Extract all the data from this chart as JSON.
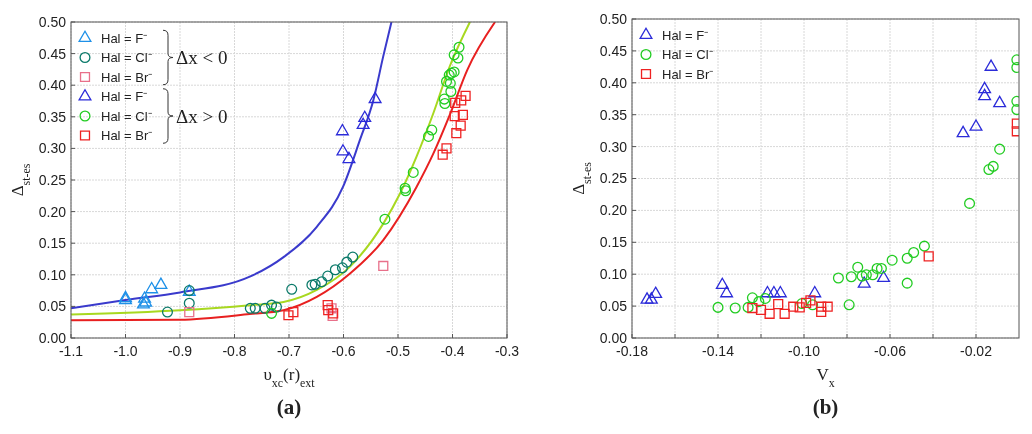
{
  "chart_data": [
    {
      "type": "scatter",
      "title": "(a)",
      "xlabel": "υ$_{xc}$(r)$_{ext}$",
      "ylabel": "Δ$_{st-es}$",
      "xlim": [
        -1.1,
        -0.3
      ],
      "xticks": [
        -1.1,
        {
          "value": -1.0,
          "label": "-1.0"
        },
        -0.9,
        -0.8,
        -0.7,
        -0.6,
        -0.5,
        -0.4,
        -0.3
      ],
      "ylim": [
        0,
        0.5
      ],
      "yticks": [
        {
          "value": 0,
          "label": "0.00"
        },
        0.05,
        {
          "value": 0.1,
          "label": "0.10"
        },
        0.15,
        {
          "value": 0.2,
          "label": "0.20"
        },
        0.25,
        {
          "value": 0.3,
          "label": "0.30"
        },
        0.35,
        {
          "value": 0.4,
          "label": "0.40"
        },
        0.45,
        {
          "value": 0.5,
          "label": "0.50"
        }
      ],
      "grid": true,
      "legend": "top left",
      "annotations": [
        "Δx < 0",
        "Δx > 0"
      ],
      "series": [
        {
          "name": "Hal = F⁻",
          "marker": "triangle",
          "color": "#1e90e8",
          "x": [
            -1.0,
            -1.0,
            -0.965,
            -0.967,
            -0.963,
            -0.952,
            -0.935,
            -0.883
          ],
          "values": [
            0.063,
            0.06,
            0.062,
            0.053,
            0.056,
            0.077,
            0.084,
            0.073
          ]
        },
        {
          "name": "Hal = Cl⁻",
          "marker": "circle",
          "color": "#0b7a6a",
          "x": [
            -0.923,
            -0.883,
            -0.883,
            -0.771,
            -0.762,
            -0.744,
            -0.732,
            -0.723,
            -0.695,
            -0.658,
            -0.652,
            -0.64,
            -0.629,
            -0.615,
            -0.602,
            -0.594,
            -0.583
          ],
          "values": [
            0.041,
            0.075,
            0.055,
            0.047,
            0.047,
            0.047,
            0.052,
            0.049,
            0.077,
            0.084,
            0.085,
            0.089,
            0.098,
            0.108,
            0.111,
            0.12,
            0.128
          ]
        },
        {
          "name": "Hal = Br⁻",
          "marker": "square",
          "color": "#e8708a",
          "x": [
            -0.883,
            -0.527,
            -0.622,
            -0.62
          ],
          "values": [
            0.041,
            0.114,
            0.047,
            0.035
          ]
        },
        {
          "name": "Hal = F⁻",
          "marker": "triangle",
          "color": "#2b2bd9",
          "x": [
            -0.602,
            -0.601,
            -0.59,
            -0.564,
            -0.561,
            -0.542
          ],
          "values": [
            0.327,
            0.295,
            0.283,
            0.337,
            0.348,
            0.378
          ]
        },
        {
          "name": "Hal = Cl⁻",
          "marker": "circle",
          "color": "#22cc22",
          "x": [
            -0.732,
            -0.524,
            -0.487,
            -0.486,
            -0.472,
            -0.444,
            -0.438,
            -0.415,
            -0.414,
            -0.411,
            -0.406,
            -0.402,
            -0.404,
            -0.397,
            -0.403,
            -0.397,
            -0.388,
            -0.39
          ],
          "values": [
            0.039,
            0.188,
            0.237,
            0.233,
            0.262,
            0.319,
            0.329,
            0.378,
            0.371,
            0.406,
            0.416,
            0.419,
            0.403,
            0.421,
            0.39,
            0.448,
            0.46,
            0.443
          ]
        },
        {
          "name": "Hal = Br⁻",
          "marker": "square",
          "color": "#ee2222",
          "x": [
            -0.701,
            -0.692,
            -0.628,
            -0.619,
            -0.629,
            -0.418,
            -0.411,
            -0.393,
            -0.385,
            -0.396,
            -0.381,
            -0.395,
            -0.384,
            -0.376
          ],
          "values": [
            0.036,
            0.041,
            0.044,
            0.039,
            0.052,
            0.29,
            0.3,
            0.324,
            0.336,
            0.351,
            0.353,
            0.372,
            0.376,
            0.383
          ]
        },
        {
          "type": "line",
          "color": "#3a3acc",
          "x": [
            -1.1,
            -1.0,
            -0.9,
            -0.772,
            -0.71,
            -0.649,
            -0.601,
            -0.57,
            -0.545,
            -0.527,
            -0.512
          ],
          "values": [
            0.047,
            0.06,
            0.072,
            0.097,
            0.128,
            0.176,
            0.239,
            0.313,
            0.377,
            0.446,
            0.5
          ]
        },
        {
          "type": "line",
          "color": "#a8d820",
          "x": [
            -1.1,
            -0.9,
            -0.772,
            -0.71,
            -0.649,
            -0.588,
            -0.527,
            -0.496,
            -0.466,
            -0.435,
            -0.405,
            -0.368
          ],
          "values": [
            0.037,
            0.044,
            0.052,
            0.057,
            0.076,
            0.113,
            0.181,
            0.229,
            0.287,
            0.356,
            0.43,
            0.5
          ]
        },
        {
          "type": "line",
          "color": "#e82020",
          "x": [
            -1.1,
            -0.9,
            -0.772,
            -0.71,
            -0.649,
            -0.588,
            -0.527,
            -0.466,
            -0.435,
            -0.405,
            -0.373,
            -0.322
          ],
          "values": [
            0.028,
            0.029,
            0.038,
            0.044,
            0.065,
            0.102,
            0.155,
            0.239,
            0.292,
            0.353,
            0.424,
            0.5
          ]
        }
      ]
    },
    {
      "type": "scatter",
      "title": "(b)",
      "xlabel": "V$_{x}$",
      "ylabel": "Δ$_{st-es}$",
      "xlim": [
        -0.18,
        0
      ],
      "xticks": [
        -0.18,
        {
          "value": -0.16,
          "label": null
        },
        -0.14,
        {
          "value": -0.12,
          "label": null
        },
        {
          "value": -0.1,
          "label": "-0.10"
        },
        {
          "value": -0.08,
          "label": null
        },
        -0.06,
        {
          "value": -0.04,
          "label": null
        },
        -0.02
      ],
      "ylim": [
        0,
        0.5
      ],
      "yticks": [
        {
          "value": 0,
          "label": "0.00"
        },
        0.05,
        {
          "value": 0.1,
          "label": "0.10"
        },
        0.15,
        {
          "value": 0.2,
          "label": "0.20"
        },
        0.25,
        {
          "value": 0.3,
          "label": "0.30"
        },
        0.35,
        {
          "value": 0.4,
          "label": "0.40"
        },
        0.45,
        {
          "value": 0.5,
          "label": "0.50"
        }
      ],
      "grid": true,
      "legend": "top left",
      "series": [
        {
          "name": "Hal = F⁻",
          "marker": "triangle",
          "color": "#2b2bd9",
          "x": [
            -0.173,
            -0.171,
            -0.169,
            -0.138,
            -0.136,
            -0.117,
            -0.114,
            -0.111,
            -0.095,
            -0.072,
            -0.063,
            -0.026,
            -0.02,
            -0.016,
            -0.016,
            -0.009,
            -0.013
          ],
          "values": [
            0.06,
            0.06,
            0.069,
            0.083,
            0.07,
            0.07,
            0.07,
            0.07,
            0.07,
            0.085,
            0.094,
            0.321,
            0.331,
            0.379,
            0.39,
            0.368,
            0.425
          ]
        },
        {
          "name": "Hal = Cl⁻",
          "marker": "circle",
          "color": "#22cc22",
          "x": [
            -0.14,
            -0.132,
            -0.126,
            -0.124,
            -0.121,
            -0.118,
            -0.101,
            -0.096,
            -0.084,
            -0.079,
            -0.078,
            -0.075,
            -0.073,
            -0.071,
            -0.068,
            -0.066,
            -0.064,
            -0.059,
            -0.052,
            -0.052,
            -0.049,
            -0.044,
            -0.023,
            -0.014,
            -0.012,
            -0.009,
            -0.001,
            -0.001,
            -0.001,
            -0.001
          ],
          "values": [
            0.048,
            0.047,
            0.048,
            0.063,
            0.057,
            0.062,
            0.054,
            0.052,
            0.094,
            0.052,
            0.096,
            0.111,
            0.097,
            0.099,
            0.099,
            0.109,
            0.109,
            0.122,
            0.125,
            0.086,
            0.134,
            0.144,
            0.211,
            0.264,
            0.269,
            0.296,
            0.358,
            0.371,
            0.424,
            0.436
          ]
        },
        {
          "name": "Hal = Br⁻",
          "marker": "square",
          "color": "#ee2222",
          "x": [
            -0.124,
            -0.12,
            -0.116,
            -0.112,
            -0.109,
            -0.105,
            -0.102,
            -0.099,
            -0.097,
            -0.092,
            -0.092,
            -0.089,
            -0.042,
            -0.001,
            -0.001
          ],
          "values": [
            0.047,
            0.044,
            0.038,
            0.053,
            0.038,
            0.049,
            0.048,
            0.055,
            0.059,
            0.049,
            0.041,
            0.049,
            0.128,
            0.324,
            0.336
          ]
        }
      ]
    }
  ]
}
